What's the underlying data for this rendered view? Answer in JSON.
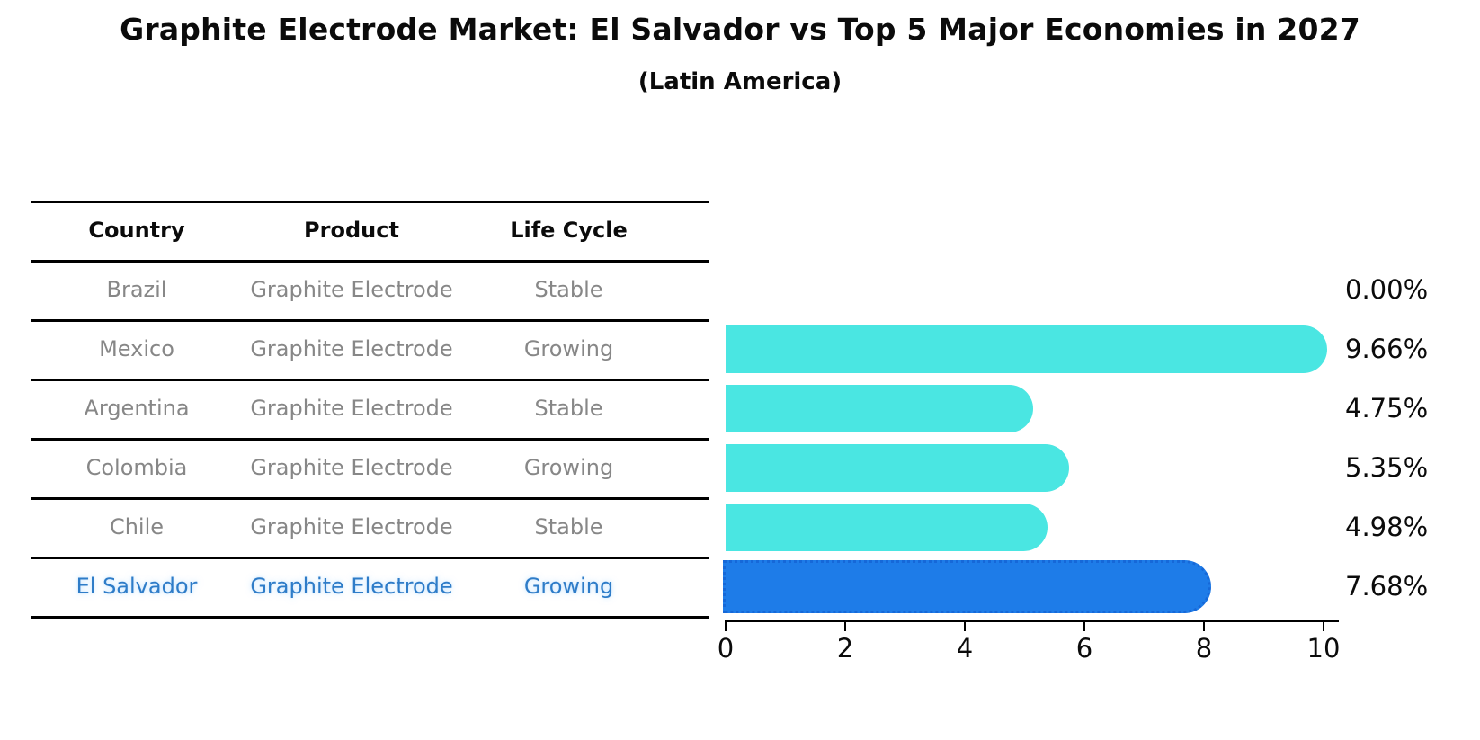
{
  "chart_data": {
    "type": "bar",
    "orientation": "horizontal",
    "title": "Graphite Electrode Market: El Salvador vs Top 5 Major Economies in 2027",
    "subtitle": "(Latin America)",
    "categories": [
      "Brazil",
      "Mexico",
      "Argentina",
      "Colombia",
      "Chile",
      "El Salvador"
    ],
    "values": [
      0.0,
      9.66,
      4.75,
      5.35,
      4.98,
      7.68
    ],
    "value_labels": [
      "0.00%",
      "9.66%",
      "4.75%",
      "5.35%",
      "4.98%",
      "7.68%"
    ],
    "xlabel": "",
    "ylabel": "",
    "xlim": [
      0,
      10.2
    ],
    "x_ticks": [
      0,
      2,
      4,
      6,
      8,
      10
    ],
    "grid": false,
    "legend": false,
    "highlight_index": 5,
    "bar_color": "#4AE6E2",
    "highlight_bar_color": "#1E7CE8",
    "highlight_border_color": "#1668D8"
  },
  "table": {
    "headers": [
      "Country",
      "Product",
      "Life Cycle"
    ],
    "rows": [
      {
        "country": "Brazil",
        "product": "Graphite Electrode",
        "life_cycle": "Stable",
        "highlight": false
      },
      {
        "country": "Mexico",
        "product": "Graphite Electrode",
        "life_cycle": "Growing",
        "highlight": false
      },
      {
        "country": "Argentina",
        "product": "Graphite Electrode",
        "life_cycle": "Stable",
        "highlight": false
      },
      {
        "country": "Colombia",
        "product": "Graphite Electrode",
        "life_cycle": "Growing",
        "highlight": false
      },
      {
        "country": "Chile",
        "product": "Graphite Electrode",
        "life_cycle": "Stable",
        "highlight": false
      },
      {
        "country": "El Salvador",
        "product": "Graphite Electrode",
        "life_cycle": "Growing",
        "highlight": true
      }
    ]
  },
  "colors": {
    "header_text": "#0B0B0B",
    "row_text": "#878787",
    "highlight_text": "#2E7CC8",
    "line_color": "#000000",
    "background": "#FFFFFF"
  }
}
